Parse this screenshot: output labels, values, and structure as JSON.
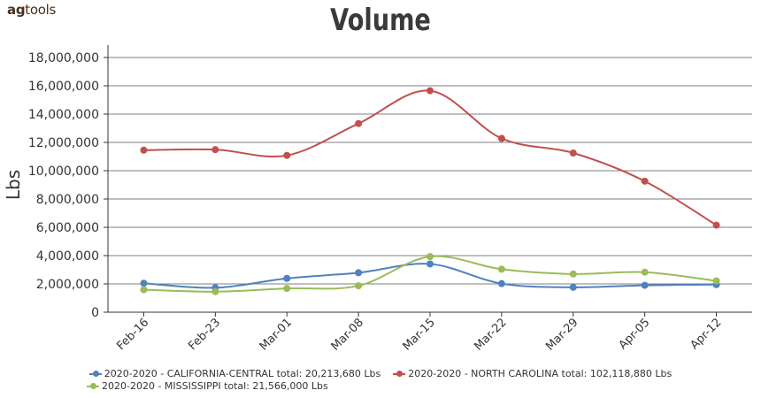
{
  "logo": {
    "bold": "ag",
    "rest": "tools"
  },
  "chart_data": {
    "type": "line",
    "title": "Volume",
    "ylabel": "Lbs",
    "xlabel": "",
    "ylim": [
      0,
      18000000
    ],
    "yticks": [
      0,
      2000000,
      4000000,
      6000000,
      8000000,
      10000000,
      12000000,
      14000000,
      16000000,
      18000000
    ],
    "categories": [
      "Feb-16",
      "Feb-23",
      "Mar-01",
      "Mar-08",
      "Mar-15",
      "Mar-22",
      "Mar-29",
      "Apr-05",
      "Apr-12"
    ],
    "grid": true,
    "legend_position": "bottom",
    "series": [
      {
        "name": "2020-2020 - CALIFORNIA-CENTRAL total: 20,213,680 Lbs",
        "color": "#4f81bd",
        "values": [
          2050000,
          1730000,
          2390000,
          2790000,
          3410000,
          2020000,
          1760000,
          1900000,
          1950000
        ]
      },
      {
        "name": "2020-2020 - NORTH CAROLINA total: 102,118,880 Lbs",
        "color": "#c0504d",
        "values": [
          11450000,
          11490000,
          11080000,
          13330000,
          15650000,
          12280000,
          11250000,
          9260000,
          6150000
        ]
      },
      {
        "name": "2020-2020 - MISSISSIPPI total: 21,566,000 Lbs",
        "color": "#9bbb59",
        "values": [
          1590000,
          1450000,
          1680000,
          1870000,
          3930000,
          3040000,
          2700000,
          2830000,
          2210000
        ]
      }
    ]
  }
}
